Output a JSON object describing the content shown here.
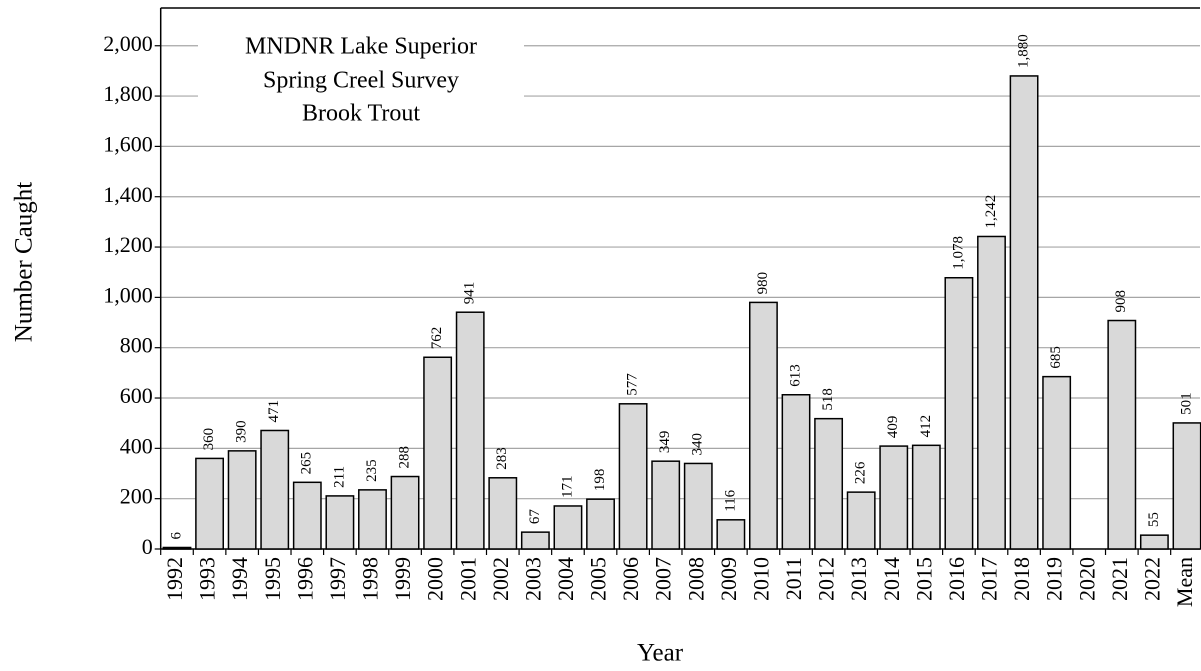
{
  "chart_data": {
    "type": "bar",
    "title": [
      "MNDNR Lake Superior",
      "Spring Creel Survey",
      "Brook Trout"
    ],
    "x_label": "Year",
    "y_label": "Number Caught",
    "categories": [
      "1992",
      "1993",
      "1994",
      "1995",
      "1996",
      "1997",
      "1998",
      "1999",
      "2000",
      "2001",
      "2002",
      "2003",
      "2004",
      "2005",
      "2006",
      "2007",
      "2008",
      "2009",
      "2010",
      "2011",
      "2012",
      "2013",
      "2014",
      "2015",
      "2016",
      "2017",
      "2018",
      "2019",
      "2020",
      "2021",
      "2022",
      "Mean"
    ],
    "values": [
      6,
      360,
      390,
      471,
      265,
      211,
      235,
      288,
      762,
      941,
      283,
      67,
      171,
      198,
      577,
      349,
      340,
      116,
      980,
      613,
      518,
      226,
      409,
      412,
      1078,
      1242,
      1880,
      685,
      null,
      908,
      55,
      501
    ],
    "value_labels": [
      "6",
      "360",
      "390",
      "471",
      "265",
      "211",
      "235",
      "288",
      "762",
      "941",
      "283",
      "67",
      "171",
      "198",
      "577",
      "349",
      "340",
      "116",
      "980",
      "613",
      "518",
      "226",
      "409",
      "412",
      "1,078",
      "1,242",
      "1,880",
      "685",
      null,
      "908",
      "55",
      "501"
    ],
    "color": "#d9d9d9",
    "ylim": [
      0,
      2150
    ],
    "yticks": [
      0,
      200,
      400,
      600,
      800,
      {
        "value": 1000,
        "label": "1,000"
      },
      {
        "value": 1200,
        "label": "1,200"
      },
      {
        "value": 1400,
        "label": "1,400"
      },
      {
        "value": 1600,
        "label": "1,600"
      },
      {
        "value": 1800,
        "label": "1,800"
      },
      {
        "value": 2000,
        "label": "2,000"
      }
    ],
    "grid": true
  }
}
